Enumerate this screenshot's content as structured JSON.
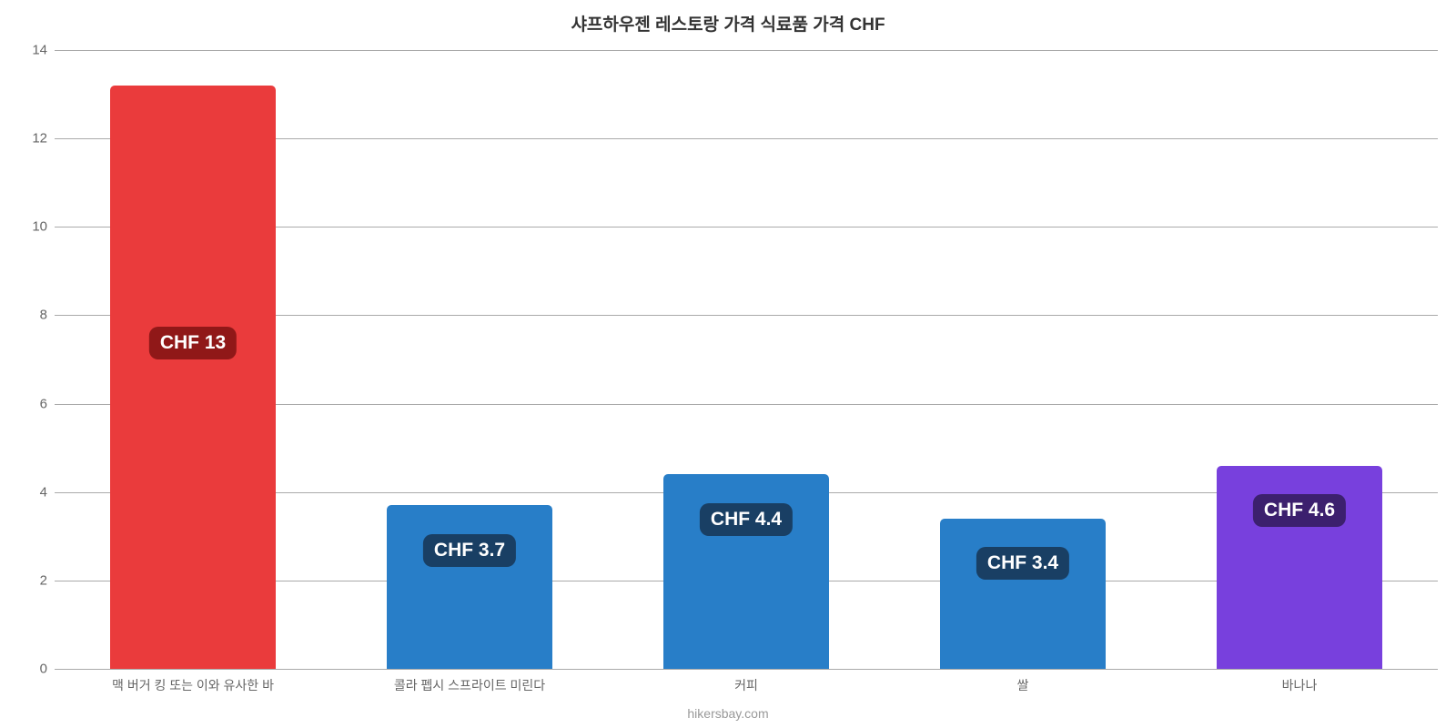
{
  "chart": {
    "type": "bar",
    "title": "샤프하우젠 레스토랑 가격 식료품 가격 CHF",
    "title_fontsize": 19,
    "title_color": "#333333",
    "background_color": "#ffffff",
    "grid_color": "#aaaaaa",
    "tick_label_color": "#666666",
    "tick_fontsize": 15,
    "x_label_fontsize": 14,
    "categories": [
      "맥 버거 킹 또는 이와 유사한 바",
      "콜라 펩시 스프라이트 미린다",
      "커피",
      "쌀",
      "바나나"
    ],
    "values": [
      13.2,
      3.7,
      4.4,
      3.4,
      4.6
    ],
    "bar_colors": [
      "#ea3b3c",
      "#287ec8",
      "#287ec8",
      "#287ec8",
      "#7840dd"
    ],
    "data_labels": [
      "CHF 13",
      "CHF 3.7",
      "CHF 4.4",
      "CHF 3.4",
      "CHF 4.6"
    ],
    "data_label_bg": [
      "#901818",
      "#193f64",
      "#193f64",
      "#193f64",
      "#3c206e"
    ],
    "data_label_fontsize": 21,
    "ylim": [
      0,
      14
    ],
    "ytick_step": 2,
    "bar_width_ratio": 0.6,
    "bar_border_radius_top": 5,
    "footer": "hikersbay.com",
    "footer_color": "#999999"
  }
}
